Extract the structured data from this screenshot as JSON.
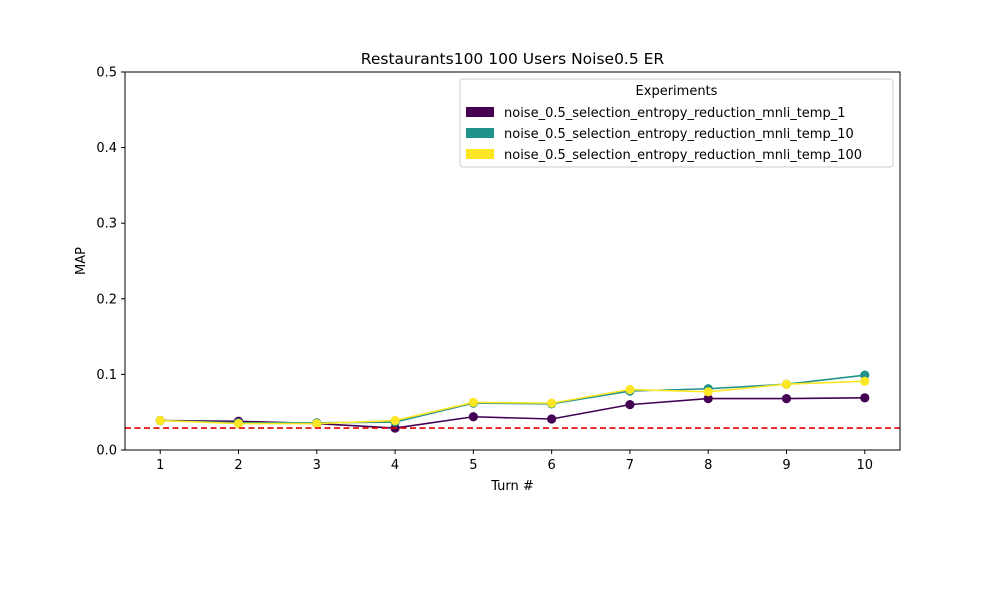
{
  "chart_data": {
    "type": "line",
    "title": "Restaurants100 100 Users Noise0.5 ER",
    "xlabel": "Turn #",
    "ylabel": "MAP",
    "x": [
      1,
      2,
      3,
      4,
      5,
      6,
      7,
      8,
      9,
      10
    ],
    "xlim": [
      0.55,
      10.45
    ],
    "ylim": [
      0,
      0.5
    ],
    "yticks": [
      0.0,
      0.1,
      0.2,
      0.3,
      0.4,
      0.5
    ],
    "ytick_labels": [
      "0.0",
      "0.1",
      "0.2",
      "0.3",
      "0.4",
      "0.5"
    ],
    "grid": false,
    "legend_title": "Experiments",
    "legend_position": "top-right",
    "series": [
      {
        "name": "noise_0.5_selection_entropy_reduction_mnli_temp_1",
        "color": "#440154",
        "values": [
          0.039,
          0.038,
          0.035,
          0.029,
          0.044,
          0.041,
          0.06,
          0.068,
          0.068,
          0.069
        ]
      },
      {
        "name": "noise_0.5_selection_entropy_reduction_mnli_temp_10",
        "color": "#21918c",
        "values": [
          0.039,
          0.036,
          0.036,
          0.037,
          0.062,
          0.061,
          0.078,
          0.081,
          0.087,
          0.099
        ]
      },
      {
        "name": "noise_0.5_selection_entropy_reduction_mnli_temp_100",
        "color": "#fde725",
        "values": [
          0.039,
          0.035,
          0.035,
          0.039,
          0.063,
          0.062,
          0.08,
          0.077,
          0.087,
          0.091
        ]
      }
    ],
    "reference_line": {
      "y": 0.029,
      "color": "#e00000",
      "style": "dashed"
    }
  }
}
